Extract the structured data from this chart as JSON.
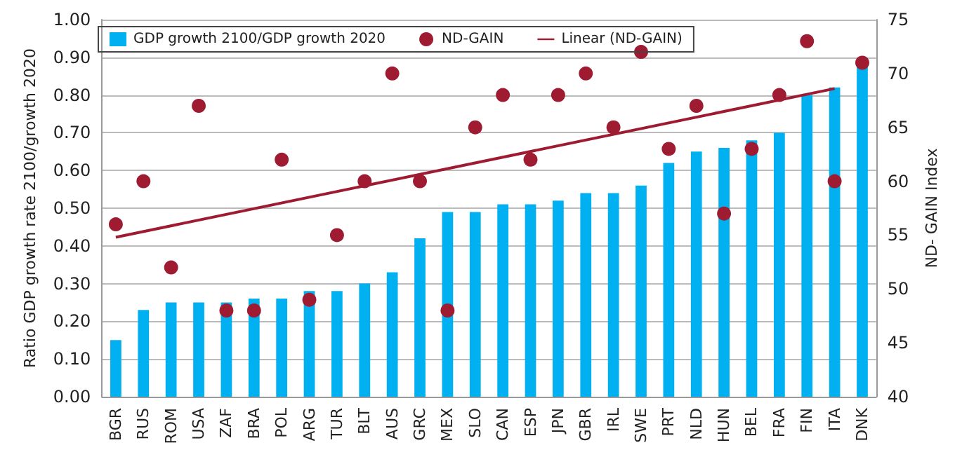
{
  "chart_data": {
    "type": "bar",
    "ylabel": "Ratio GDP growth rate 2100/growth 2020",
    "y2label": "ND- GAIN Index",
    "categories": [
      "BGR",
      "RUS",
      "ROM",
      "USA",
      "ZAF",
      "BRA",
      "POL",
      "ARG",
      "TUR",
      "BLT",
      "AUS",
      "GRC",
      "MEX",
      "SLO",
      "CAN",
      "ESP",
      "JPN",
      "GBR",
      "IRL",
      "SWE",
      "PRT",
      "NLD",
      "HUN",
      "BEL",
      "FRA",
      "FIN",
      "ITA",
      "DNK"
    ],
    "series": [
      {
        "name": "GDP growth 2100/GDP growth 2020",
        "color": "#00b0f0",
        "values": [
          0.15,
          0.23,
          0.25,
          0.25,
          0.25,
          0.26,
          0.26,
          0.28,
          0.28,
          0.3,
          0.33,
          0.42,
          0.49,
          0.49,
          0.51,
          0.51,
          0.52,
          0.54,
          0.54,
          0.56,
          0.62,
          0.65,
          0.66,
          0.68,
          0.7,
          0.8,
          0.82,
          0.88
        ]
      },
      {
        "name": "ND-GAIN",
        "type": "scatter",
        "axis": "y2",
        "color": "#9e1b32",
        "marker": "circle",
        "values": [
          56,
          60,
          52,
          67,
          48,
          48,
          62,
          49,
          55,
          60,
          70,
          60,
          48,
          65,
          68,
          62,
          68,
          70,
          65,
          72,
          63,
          67,
          57,
          63,
          68,
          73,
          60,
          71
        ]
      },
      {
        "name": "Linear (ND-GAIN)",
        "type": "line",
        "axis": "y2",
        "color": "#9e1b32",
        "x": [
          "BGR",
          "ITA"
        ],
        "values": [
          54.8,
          68.6
        ]
      }
    ],
    "ylim": [
      0,
      1
    ],
    "yticks": [
      {
        "value": 0,
        "label": "0.00"
      },
      {
        "value": 0.1,
        "label": "0.10"
      },
      {
        "value": 0.2,
        "label": "0.20"
      },
      {
        "value": 0.3,
        "label": "0.30"
      },
      {
        "value": 0.4,
        "label": "0.40"
      },
      {
        "value": 0.5,
        "label": "0.50"
      },
      {
        "value": 0.6,
        "label": "0.60"
      },
      {
        "value": 0.7,
        "label": "0.70"
      },
      {
        "value": 0.8,
        "label": "0.80"
      },
      {
        "value": 0.9,
        "label": "0.90"
      },
      {
        "value": 1,
        "label": "1.00"
      }
    ],
    "y2lim": [
      40,
      75
    ],
    "y2ticks": [
      40,
      45,
      50,
      55,
      60,
      65,
      70,
      75
    ],
    "grid": "y",
    "legend": "top left"
  }
}
